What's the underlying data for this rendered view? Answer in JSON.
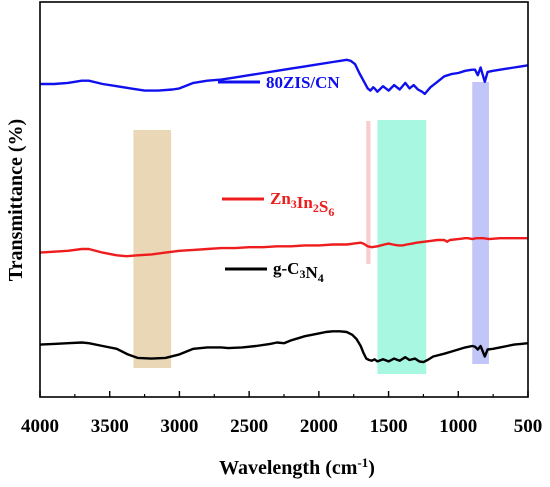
{
  "chart_data": {
    "type": "line",
    "title": "",
    "xlabel": "Wavelength (cm-1)",
    "ylabel": "Transmittance (%)",
    "xlim": [
      4000,
      500
    ],
    "x_ticks": [
      4000,
      3500,
      3000,
      2500,
      2000,
      1500,
      1000,
      500
    ],
    "y_ticks": [],
    "xaxis_reversed": true,
    "grid": false,
    "legend": [
      {
        "text": "80ZIS/CN",
        "color": "#1010ee"
      },
      {
        "text": "Zn3In2S6",
        "color": "#ee1c1c"
      },
      {
        "text": "g-C3N4",
        "color": "#000000"
      }
    ],
    "bands": [
      {
        "x_from": 3330,
        "x_to": 3060,
        "color": "#d9b77a"
      },
      {
        "x_from": 1660,
        "x_to": 1630,
        "color": "#f4a4a4"
      },
      {
        "x_from": 1580,
        "x_to": 1230,
        "color": "#5ff0c8"
      },
      {
        "x_from": 900,
        "x_to": 780,
        "color": "#8f96f0"
      }
    ],
    "series": [
      {
        "name": "80ZIS/CN",
        "color": "#1010ee",
        "points": [
          [
            4000,
            0.4
          ],
          [
            3900,
            0.4
          ],
          [
            3800,
            0.41
          ],
          [
            3700,
            0.43
          ],
          [
            3650,
            0.43
          ],
          [
            3550,
            0.4
          ],
          [
            3450,
            0.38
          ],
          [
            3350,
            0.36
          ],
          [
            3250,
            0.34
          ],
          [
            3150,
            0.34
          ],
          [
            3050,
            0.35
          ],
          [
            3000,
            0.36
          ],
          [
            2900,
            0.41
          ],
          [
            2800,
            0.43
          ],
          [
            2700,
            0.44
          ],
          [
            2600,
            0.46
          ],
          [
            2500,
            0.48
          ],
          [
            2400,
            0.5
          ],
          [
            2300,
            0.52
          ],
          [
            2200,
            0.54
          ],
          [
            2100,
            0.56
          ],
          [
            2000,
            0.58
          ],
          [
            1900,
            0.6
          ],
          [
            1850,
            0.61
          ],
          [
            1800,
            0.62
          ],
          [
            1770,
            0.61
          ],
          [
            1740,
            0.58
          ],
          [
            1710,
            0.5
          ],
          [
            1680,
            0.43
          ],
          [
            1650,
            0.36
          ],
          [
            1630,
            0.34
          ],
          [
            1610,
            0.37
          ],
          [
            1600,
            0.36
          ],
          [
            1580,
            0.33
          ],
          [
            1540,
            0.38
          ],
          [
            1500,
            0.34
          ],
          [
            1460,
            0.39
          ],
          [
            1420,
            0.35
          ],
          [
            1380,
            0.41
          ],
          [
            1350,
            0.36
          ],
          [
            1320,
            0.39
          ],
          [
            1290,
            0.35
          ],
          [
            1260,
            0.33
          ],
          [
            1240,
            0.31
          ],
          [
            1200,
            0.37
          ],
          [
            1150,
            0.42
          ],
          [
            1100,
            0.47
          ],
          [
            1050,
            0.49
          ],
          [
            1000,
            0.5
          ],
          [
            950,
            0.52
          ],
          [
            900,
            0.53
          ],
          [
            880,
            0.53
          ],
          [
            860,
            0.48
          ],
          [
            840,
            0.55
          ],
          [
            810,
            0.42
          ],
          [
            790,
            0.51
          ],
          [
            750,
            0.52
          ],
          [
            700,
            0.53
          ],
          [
            650,
            0.54
          ],
          [
            600,
            0.55
          ],
          [
            550,
            0.56
          ],
          [
            500,
            0.57
          ]
        ]
      },
      {
        "name": "Zn3In2S6",
        "color": "#ee1c1c",
        "points": [
          [
            4000,
            0.06
          ],
          [
            3900,
            0.07
          ],
          [
            3800,
            0.08
          ],
          [
            3700,
            0.1
          ],
          [
            3650,
            0.1
          ],
          [
            3550,
            0.06
          ],
          [
            3450,
            0.03
          ],
          [
            3380,
            0.02
          ],
          [
            3300,
            0.03
          ],
          [
            3200,
            0.04
          ],
          [
            3100,
            0.06
          ],
          [
            3000,
            0.08
          ],
          [
            2900,
            0.09
          ],
          [
            2800,
            0.1
          ],
          [
            2700,
            0.11
          ],
          [
            2600,
            0.11
          ],
          [
            2500,
            0.12
          ],
          [
            2400,
            0.12
          ],
          [
            2300,
            0.13
          ],
          [
            2200,
            0.13
          ],
          [
            2100,
            0.14
          ],
          [
            2000,
            0.14
          ],
          [
            1900,
            0.15
          ],
          [
            1800,
            0.15
          ],
          [
            1750,
            0.16
          ],
          [
            1700,
            0.17
          ],
          [
            1680,
            0.16
          ],
          [
            1650,
            0.13
          ],
          [
            1620,
            0.12
          ],
          [
            1580,
            0.13
          ],
          [
            1530,
            0.15
          ],
          [
            1500,
            0.16
          ],
          [
            1470,
            0.15
          ],
          [
            1430,
            0.14
          ],
          [
            1400,
            0.14
          ],
          [
            1370,
            0.15
          ],
          [
            1330,
            0.16
          ],
          [
            1300,
            0.17
          ],
          [
            1250,
            0.18
          ],
          [
            1200,
            0.19
          ],
          [
            1150,
            0.2
          ],
          [
            1100,
            0.2
          ],
          [
            1080,
            0.18
          ],
          [
            1060,
            0.2
          ],
          [
            1000,
            0.21
          ],
          [
            950,
            0.22
          ],
          [
            930,
            0.22
          ],
          [
            900,
            0.21
          ],
          [
            870,
            0.22
          ],
          [
            820,
            0.22
          ],
          [
            780,
            0.21
          ],
          [
            700,
            0.22
          ],
          [
            600,
            0.22
          ],
          [
            500,
            0.22
          ]
        ]
      },
      {
        "name": "g-C3N4",
        "color": "#000000",
        "points": [
          [
            4000,
            -0.38
          ],
          [
            3900,
            -0.37
          ],
          [
            3800,
            -0.36
          ],
          [
            3700,
            -0.35
          ],
          [
            3650,
            -0.36
          ],
          [
            3550,
            -0.4
          ],
          [
            3450,
            -0.44
          ],
          [
            3370,
            -0.52
          ],
          [
            3300,
            -0.57
          ],
          [
            3200,
            -0.58
          ],
          [
            3100,
            -0.57
          ],
          [
            3000,
            -0.52
          ],
          [
            2900,
            -0.44
          ],
          [
            2800,
            -0.42
          ],
          [
            2700,
            -0.42
          ],
          [
            2650,
            -0.43
          ],
          [
            2550,
            -0.42
          ],
          [
            2450,
            -0.4
          ],
          [
            2350,
            -0.37
          ],
          [
            2300,
            -0.35
          ],
          [
            2250,
            -0.36
          ],
          [
            2200,
            -0.32
          ],
          [
            2150,
            -0.29
          ],
          [
            2100,
            -0.26
          ],
          [
            2050,
            -0.24
          ],
          [
            2000,
            -0.22
          ],
          [
            1950,
            -0.2
          ],
          [
            1900,
            -0.19
          ],
          [
            1850,
            -0.19
          ],
          [
            1800,
            -0.2
          ],
          [
            1760,
            -0.24
          ],
          [
            1730,
            -0.3
          ],
          [
            1700,
            -0.4
          ],
          [
            1680,
            -0.5
          ],
          [
            1660,
            -0.58
          ],
          [
            1640,
            -0.6
          ],
          [
            1620,
            -0.61
          ],
          [
            1600,
            -0.59
          ],
          [
            1580,
            -0.62
          ],
          [
            1540,
            -0.59
          ],
          [
            1500,
            -0.62
          ],
          [
            1460,
            -0.58
          ],
          [
            1420,
            -0.61
          ],
          [
            1380,
            -0.56
          ],
          [
            1350,
            -0.6
          ],
          [
            1310,
            -0.58
          ],
          [
            1280,
            -0.62
          ],
          [
            1250,
            -0.63
          ],
          [
            1220,
            -0.6
          ],
          [
            1180,
            -0.55
          ],
          [
            1100,
            -0.51
          ],
          [
            1050,
            -0.48
          ],
          [
            1000,
            -0.45
          ],
          [
            950,
            -0.42
          ],
          [
            900,
            -0.4
          ],
          [
            880,
            -0.41
          ],
          [
            860,
            -0.45
          ],
          [
            840,
            -0.4
          ],
          [
            810,
            -0.55
          ],
          [
            790,
            -0.45
          ],
          [
            750,
            -0.44
          ],
          [
            700,
            -0.42
          ],
          [
            650,
            -0.4
          ],
          [
            600,
            -0.38
          ],
          [
            550,
            -0.37
          ],
          [
            500,
            -0.36
          ]
        ]
      }
    ]
  }
}
